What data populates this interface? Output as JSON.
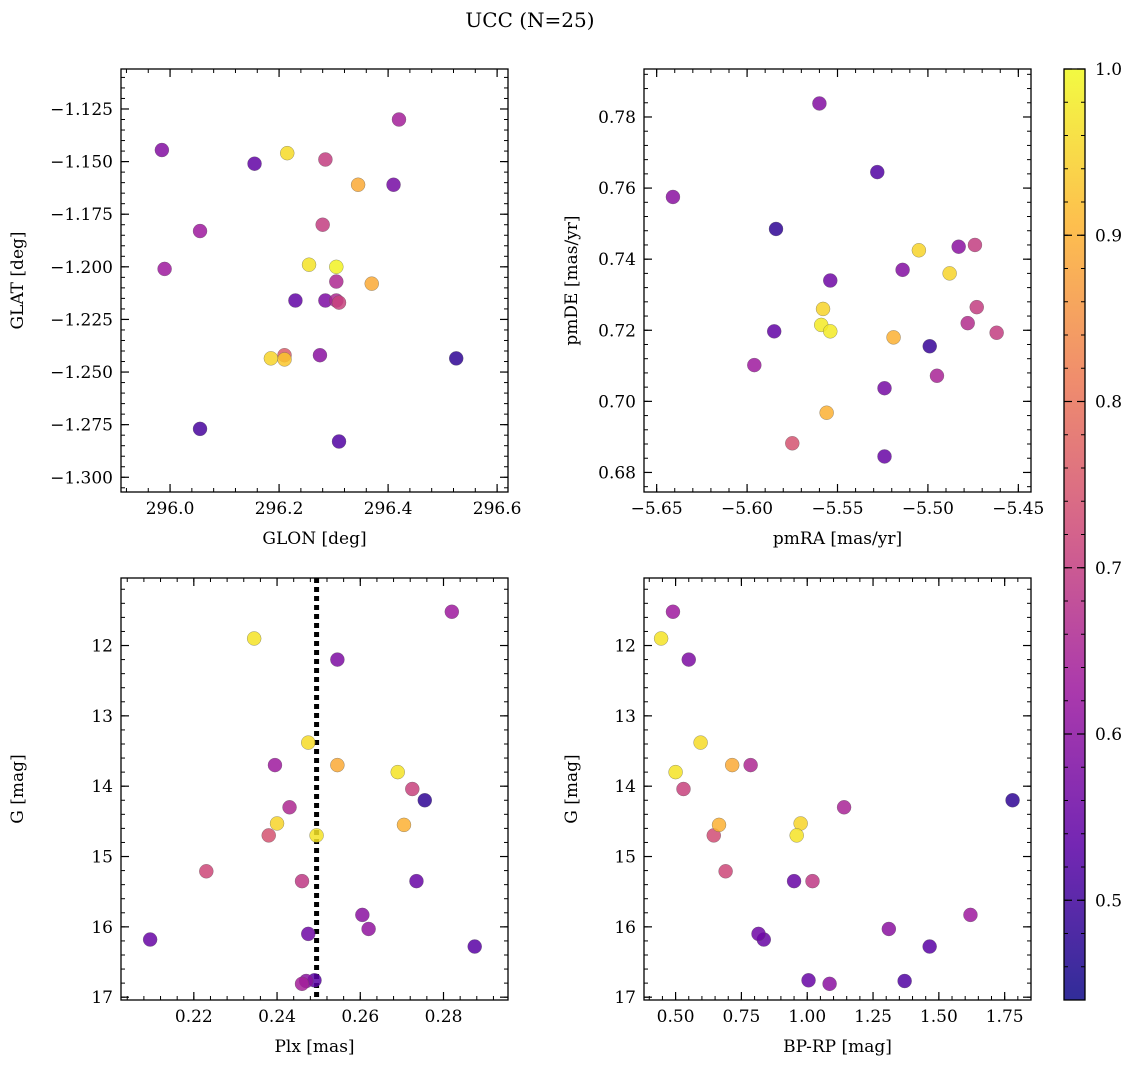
{
  "figure": {
    "suptitle": "UCC (N=25)"
  },
  "colorbar": {
    "min": 0.44,
    "max": 1.0,
    "ticks": [
      0.5,
      0.6,
      0.7,
      0.8,
      0.9,
      1.0
    ],
    "tick_labels": [
      "0.5",
      "0.6",
      "0.7",
      "0.8",
      "0.9",
      "1.0"
    ],
    "colormap": "plasma",
    "colors": [
      "#0d0887",
      "#5c01a6",
      "#9c179e",
      "#cc4778",
      "#ed7953",
      "#fdb42f",
      "#f0f921"
    ]
  },
  "chart_data": [
    {
      "id": "glon-glat",
      "type": "scatter",
      "xlabel": "GLON [deg]",
      "ylabel": "GLAT [deg]",
      "xlim": [
        295.91,
        296.62
      ],
      "ylim": [
        -1.307,
        -1.106
      ],
      "y_inverted": false,
      "xticks": [
        296.0,
        296.2,
        296.4,
        296.6
      ],
      "xtick_labels": [
        "296.0",
        "296.2",
        "296.4",
        "296.6"
      ],
      "yticks": [
        -1.3,
        -1.275,
        -1.25,
        -1.225,
        -1.2,
        -1.175,
        -1.15,
        -1.125
      ],
      "ytick_labels": [
        "−1.300",
        "−1.275",
        "−1.250",
        "−1.225",
        "−1.200",
        "−1.175",
        "−1.150",
        "−1.125"
      ],
      "points": [
        {
          "x": 295.985,
          "y": -1.1445,
          "c": 0.59
        },
        {
          "x": 296.155,
          "y": -1.151,
          "c": 0.54
        },
        {
          "x": 296.215,
          "y": -1.146,
          "c": 0.96
        },
        {
          "x": 296.285,
          "y": -1.149,
          "c": 0.7
        },
        {
          "x": 296.42,
          "y": -1.13,
          "c": 0.64
        },
        {
          "x": 296.345,
          "y": -1.161,
          "c": 0.89
        },
        {
          "x": 296.41,
          "y": -1.161,
          "c": 0.57
        },
        {
          "x": 296.28,
          "y": -1.18,
          "c": 0.7
        },
        {
          "x": 296.055,
          "y": -1.183,
          "c": 0.63
        },
        {
          "x": 295.99,
          "y": -1.201,
          "c": 0.63
        },
        {
          "x": 296.255,
          "y": -1.199,
          "c": 0.97
        },
        {
          "x": 296.305,
          "y": -1.2,
          "c": 0.99
        },
        {
          "x": 296.305,
          "y": -1.207,
          "c": 0.66
        },
        {
          "x": 296.37,
          "y": -1.208,
          "c": 0.89
        },
        {
          "x": 296.23,
          "y": -1.216,
          "c": 0.54
        },
        {
          "x": 296.285,
          "y": -1.216,
          "c": 0.58
        },
        {
          "x": 296.305,
          "y": -1.216,
          "c": 0.66
        },
        {
          "x": 296.31,
          "y": -1.217,
          "c": 0.71
        },
        {
          "x": 296.21,
          "y": -1.242,
          "c": 0.76
        },
        {
          "x": 296.185,
          "y": -1.2435,
          "c": 0.95
        },
        {
          "x": 296.21,
          "y": -1.244,
          "c": 0.93
        },
        {
          "x": 296.275,
          "y": -1.242,
          "c": 0.6
        },
        {
          "x": 296.525,
          "y": -1.2435,
          "c": 0.48
        },
        {
          "x": 296.055,
          "y": -1.277,
          "c": 0.51
        },
        {
          "x": 296.31,
          "y": -1.283,
          "c": 0.52
        }
      ]
    },
    {
      "id": "pm",
      "type": "scatter",
      "xlabel": "pmRA [mas/yr]",
      "ylabel": "pmDE [mas/yr]",
      "xlim": [
        -5.657,
        -5.443
      ],
      "ylim": [
        0.6745,
        0.7935
      ],
      "y_inverted": false,
      "xticks": [
        -5.65,
        -5.6,
        -5.55,
        -5.5,
        -5.45
      ],
      "xtick_labels": [
        "−5.65",
        "−5.60",
        "−5.55",
        "−5.50",
        "−5.45"
      ],
      "yticks": [
        0.68,
        0.7,
        0.72,
        0.74,
        0.76,
        0.78
      ],
      "ytick_labels": [
        "0.68",
        "0.70",
        "0.72",
        "0.74",
        "0.76",
        "0.78"
      ],
      "points": [
        {
          "x": -5.56,
          "y": 0.7838,
          "c": 0.59
        },
        {
          "x": -5.641,
          "y": 0.7575,
          "c": 0.6
        },
        {
          "x": -5.528,
          "y": 0.7645,
          "c": 0.52
        },
        {
          "x": -5.584,
          "y": 0.7485,
          "c": 0.48
        },
        {
          "x": -5.505,
          "y": 0.7425,
          "c": 0.95
        },
        {
          "x": -5.483,
          "y": 0.7435,
          "c": 0.6
        },
        {
          "x": -5.474,
          "y": 0.744,
          "c": 0.7
        },
        {
          "x": -5.514,
          "y": 0.737,
          "c": 0.59
        },
        {
          "x": -5.554,
          "y": 0.734,
          "c": 0.56
        },
        {
          "x": -5.488,
          "y": 0.736,
          "c": 0.95
        },
        {
          "x": -5.473,
          "y": 0.7265,
          "c": 0.7
        },
        {
          "x": -5.558,
          "y": 0.726,
          "c": 0.95
        },
        {
          "x": -5.478,
          "y": 0.722,
          "c": 0.67
        },
        {
          "x": -5.559,
          "y": 0.7215,
          "c": 0.98
        },
        {
          "x": -5.585,
          "y": 0.7197,
          "c": 0.54
        },
        {
          "x": -5.554,
          "y": 0.7197,
          "c": 0.98
        },
        {
          "x": -5.462,
          "y": 0.7193,
          "c": 0.7
        },
        {
          "x": -5.519,
          "y": 0.718,
          "c": 0.9
        },
        {
          "x": -5.499,
          "y": 0.7155,
          "c": 0.49
        },
        {
          "x": -5.596,
          "y": 0.7102,
          "c": 0.63
        },
        {
          "x": -5.495,
          "y": 0.7072,
          "c": 0.65
        },
        {
          "x": -5.524,
          "y": 0.7037,
          "c": 0.57
        },
        {
          "x": -5.556,
          "y": 0.6968,
          "c": 0.9
        },
        {
          "x": -5.575,
          "y": 0.6882,
          "c": 0.74
        },
        {
          "x": -5.524,
          "y": 0.6845,
          "c": 0.55
        }
      ]
    },
    {
      "id": "plx-g",
      "type": "scatter",
      "xlabel": "Plx [mas]",
      "ylabel": "G [mag]",
      "xlim": [
        0.2025,
        0.2955
      ],
      "ylim": [
        17.04,
        11.04
      ],
      "y_inverted": true,
      "xticks": [
        0.22,
        0.24,
        0.26,
        0.28
      ],
      "xtick_labels": [
        "0.22",
        "0.24",
        "0.26",
        "0.28"
      ],
      "yticks": [
        12,
        13,
        14,
        15,
        16,
        17
      ],
      "ytick_labels": [
        "12",
        "13",
        "14",
        "15",
        "16",
        "17"
      ],
      "vline": {
        "x": 0.2495,
        "style": "dotted",
        "color": "#000000"
      },
      "points": [
        {
          "x": 0.282,
          "y": 11.52,
          "c": 0.63
        },
        {
          "x": 0.2345,
          "y": 11.9,
          "c": 0.97
        },
        {
          "x": 0.2545,
          "y": 12.2,
          "c": 0.58
        },
        {
          "x": 0.2475,
          "y": 13.38,
          "c": 0.96
        },
        {
          "x": 0.2395,
          "y": 13.7,
          "c": 0.63
        },
        {
          "x": 0.2545,
          "y": 13.7,
          "c": 0.89
        },
        {
          "x": 0.269,
          "y": 13.8,
          "c": 0.97
        },
        {
          "x": 0.2725,
          "y": 14.04,
          "c": 0.71
        },
        {
          "x": 0.2755,
          "y": 14.2,
          "c": 0.48
        },
        {
          "x": 0.243,
          "y": 14.3,
          "c": 0.66
        },
        {
          "x": 0.24,
          "y": 14.53,
          "c": 0.95
        },
        {
          "x": 0.2705,
          "y": 14.55,
          "c": 0.9
        },
        {
          "x": 0.238,
          "y": 14.7,
          "c": 0.74
        },
        {
          "x": 0.2495,
          "y": 14.7,
          "c": 0.97
        },
        {
          "x": 0.223,
          "y": 15.21,
          "c": 0.72
        },
        {
          "x": 0.246,
          "y": 15.35,
          "c": 0.69
        },
        {
          "x": 0.2735,
          "y": 15.35,
          "c": 0.55
        },
        {
          "x": 0.2605,
          "y": 15.83,
          "c": 0.6
        },
        {
          "x": 0.262,
          "y": 16.03,
          "c": 0.61
        },
        {
          "x": 0.2475,
          "y": 16.1,
          "c": 0.56
        },
        {
          "x": 0.2095,
          "y": 16.18,
          "c": 0.55
        },
        {
          "x": 0.2875,
          "y": 16.28,
          "c": 0.53
        },
        {
          "x": 0.249,
          "y": 16.76,
          "c": 0.53
        },
        {
          "x": 0.247,
          "y": 16.77,
          "c": 0.6
        },
        {
          "x": 0.246,
          "y": 16.81,
          "c": 0.64
        }
      ]
    },
    {
      "id": "cmd",
      "type": "scatter",
      "xlabel": "BP-RP [mag]",
      "ylabel": "G [mag]",
      "xlim": [
        0.38,
        1.85
      ],
      "ylim": [
        17.04,
        11.04
      ],
      "y_inverted": true,
      "xticks": [
        0.5,
        0.75,
        1.0,
        1.25,
        1.5,
        1.75
      ],
      "xtick_labels": [
        "0.50",
        "0.75",
        "1.00",
        "1.25",
        "1.50",
        "1.75"
      ],
      "yticks": [
        12,
        13,
        14,
        15,
        16,
        17
      ],
      "ytick_labels": [
        "12",
        "13",
        "14",
        "15",
        "16",
        "17"
      ],
      "points": [
        {
          "x": 0.49,
          "y": 11.52,
          "c": 0.63
        },
        {
          "x": 0.445,
          "y": 11.9,
          "c": 0.97
        },
        {
          "x": 0.55,
          "y": 12.2,
          "c": 0.58
        },
        {
          "x": 0.595,
          "y": 13.38,
          "c": 0.96
        },
        {
          "x": 0.5,
          "y": 13.8,
          "c": 0.97
        },
        {
          "x": 0.715,
          "y": 13.7,
          "c": 0.89
        },
        {
          "x": 0.785,
          "y": 13.7,
          "c": 0.66
        },
        {
          "x": 0.53,
          "y": 14.04,
          "c": 0.71
        },
        {
          "x": 1.14,
          "y": 14.3,
          "c": 0.65
        },
        {
          "x": 1.78,
          "y": 14.2,
          "c": 0.48
        },
        {
          "x": 0.665,
          "y": 14.55,
          "c": 0.9
        },
        {
          "x": 0.975,
          "y": 14.53,
          "c": 0.95
        },
        {
          "x": 0.645,
          "y": 14.7,
          "c": 0.73
        },
        {
          "x": 0.96,
          "y": 14.7,
          "c": 0.97
        },
        {
          "x": 0.69,
          "y": 15.21,
          "c": 0.72
        },
        {
          "x": 0.95,
          "y": 15.35,
          "c": 0.55
        },
        {
          "x": 1.02,
          "y": 15.35,
          "c": 0.69
        },
        {
          "x": 1.62,
          "y": 15.83,
          "c": 0.63
        },
        {
          "x": 1.31,
          "y": 16.03,
          "c": 0.6
        },
        {
          "x": 0.815,
          "y": 16.1,
          "c": 0.56
        },
        {
          "x": 0.835,
          "y": 16.18,
          "c": 0.55
        },
        {
          "x": 1.465,
          "y": 16.28,
          "c": 0.53
        },
        {
          "x": 1.005,
          "y": 16.76,
          "c": 0.55
        },
        {
          "x": 1.085,
          "y": 16.81,
          "c": 0.6
        },
        {
          "x": 1.37,
          "y": 16.77,
          "c": 0.52
        }
      ]
    }
  ]
}
